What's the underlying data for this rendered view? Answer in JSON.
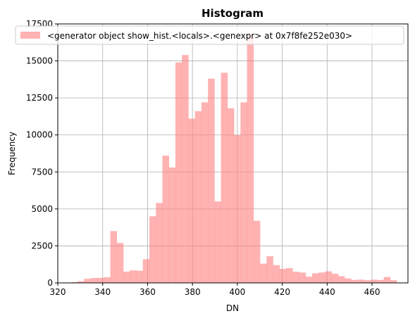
{
  "chart_data": {
    "type": "bar",
    "title": "Histogram",
    "xlabel": "DN",
    "ylabel": "Frequency",
    "xlim": [
      320,
      476
    ],
    "ylim": [
      0,
      17500
    ],
    "xticks": [
      320,
      340,
      360,
      380,
      400,
      420,
      440,
      460
    ],
    "yticks": [
      0,
      2500,
      5000,
      7500,
      10000,
      12500,
      15000,
      17500
    ],
    "grid": true,
    "legend_position": "top",
    "series": [
      {
        "name": "<generator object show_hist.<locals>.<genexpr> at 0x7f8fe252e030>",
        "color": "#ff7f7f",
        "opacity": 0.6,
        "bin_start": 326,
        "bin_width": 2.9,
        "counts": [
          50,
          120,
          280,
          330,
          340,
          380,
          3500,
          2700,
          760,
          850,
          820,
          1600,
          4500,
          5400,
          8600,
          7800,
          14900,
          15400,
          11100,
          11600,
          12200,
          13800,
          5500,
          14200,
          11800,
          10000,
          12200,
          16800,
          4200,
          1300,
          1800,
          1200,
          950,
          1000,
          750,
          700,
          420,
          650,
          700,
          780,
          620,
          450,
          300,
          200,
          220,
          180,
          220,
          200,
          400,
          180
        ]
      }
    ]
  }
}
